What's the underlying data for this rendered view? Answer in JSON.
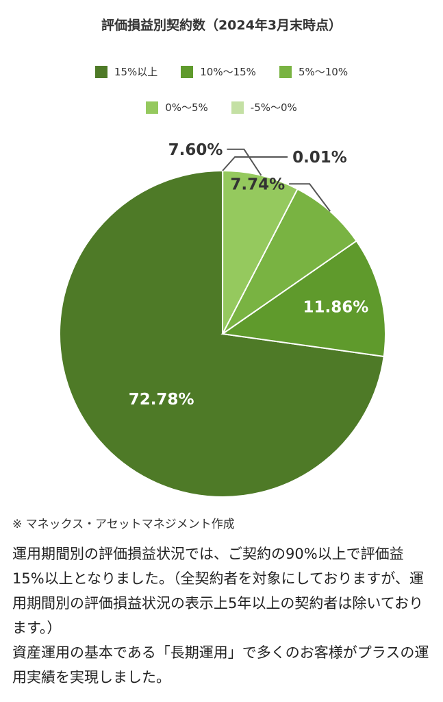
{
  "chart_data": {
    "type": "pie",
    "title": "評価損益別契約数（2024年3月末時点）",
    "categories": [
      "15%以上",
      "10%～15%",
      "5%～10%",
      "0%～5%",
      "-5%～0%"
    ],
    "values": [
      72.78,
      11.86,
      7.74,
      7.6,
      0.01
    ],
    "data_labels": [
      "72.78%",
      "11.86%",
      "7.74%",
      "7.60%",
      "0.01%"
    ],
    "colors": [
      "#4e7a27",
      "#5f9a2c",
      "#79b342",
      "#95c95e",
      "#c4e0a4"
    ],
    "legend_position": "top"
  },
  "note": "※ マネックス・アセットマネジメント作成",
  "paragraphs": [
    "運用期間別の評価損益状況では、ご契約の90%以上で評価益15%以上となりました。（全契約者を対象にしておりますが、運用期間別の評価損益状況の表示上5年以上の契約者は除いております。）",
    "資産運用の基本である「長期運用」で多くのお客様がプラスの運用実績を実現しました。"
  ]
}
